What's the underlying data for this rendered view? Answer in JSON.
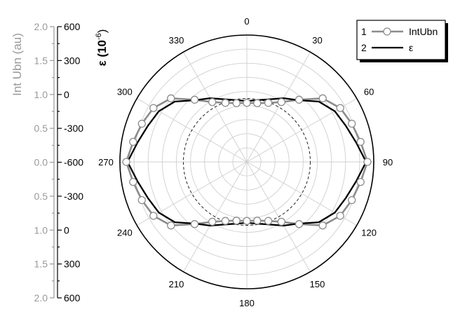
{
  "chart_data": {
    "type": "polar-line",
    "angle_unit": "degrees",
    "angle_direction": "clockwise",
    "zero_location": "top",
    "angle_ticks": [
      0,
      30,
      60,
      90,
      120,
      150,
      180,
      210,
      240,
      270,
      300,
      330
    ],
    "angle_tick_labels": [
      "0",
      "30",
      "60",
      "90",
      "120",
      "150",
      "180",
      "210",
      "240",
      "270",
      "300",
      "330"
    ],
    "radial_gridlines": 9,
    "reference_circle": {
      "style": "dashed",
      "value_au": 1.0
    },
    "left_axis": {
      "label": "Int Ubn (au)",
      "color": "#9a9a9a",
      "range_au": [
        0,
        2.0
      ],
      "tick_labels": [
        "2.0",
        "1.5",
        "1.0",
        "0.5",
        "0.0",
        "0.5",
        "1.0",
        "1.5",
        "2.0"
      ]
    },
    "right_axis": {
      "label_prefix": "ε (10",
      "label_exponent": "-6",
      "label_suffix": ")",
      "color": "#000000",
      "range": [
        -600,
        600
      ],
      "tick_labels": [
        "600",
        "300",
        "0",
        "-300",
        "-600",
        "-300",
        "0",
        "300",
        "600"
      ]
    },
    "legend": {
      "position": "top-right",
      "entries": [
        {
          "index": "1",
          "label": "IntUbn",
          "color": "#8c8c8c",
          "marker": "open-circle"
        },
        {
          "index": "2",
          "label": "ε",
          "color": "#000000",
          "marker": "none"
        }
      ]
    },
    "series": [
      {
        "name": "IntUbn",
        "angles": [
          0,
          10,
          20,
          30,
          40,
          50,
          60,
          70,
          80,
          90,
          100,
          110,
          120,
          130,
          140,
          150,
          160,
          170,
          180,
          190,
          200,
          210,
          220,
          230,
          240,
          250,
          260,
          270,
          280,
          290,
          300,
          310,
          320,
          330,
          340,
          350
        ],
        "values_au": [
          0.93,
          0.94,
          0.99,
          1.09,
          1.28,
          1.56,
          1.7,
          1.76,
          1.82,
          1.9,
          1.82,
          1.76,
          1.7,
          1.56,
          1.28,
          1.09,
          0.99,
          0.94,
          0.93,
          0.94,
          0.99,
          1.09,
          1.28,
          1.56,
          1.7,
          1.76,
          1.82,
          1.9,
          1.82,
          1.76,
          1.7,
          1.56,
          1.28,
          1.09,
          0.99,
          0.94
        ]
      },
      {
        "name": "ε",
        "angles": [
          0,
          10,
          20,
          30,
          40,
          50,
          60,
          70,
          80,
          90,
          100,
          110,
          120,
          130,
          140,
          150,
          160,
          170,
          180,
          190,
          200,
          210,
          220,
          230,
          240,
          250,
          260,
          270,
          280,
          290,
          300,
          310,
          320,
          330,
          340,
          350
        ],
        "values_au": [
          0.96,
          0.99,
          1.05,
          1.16,
          1.27,
          1.48,
          1.6,
          1.66,
          1.75,
          1.88,
          1.75,
          1.66,
          1.6,
          1.48,
          1.27,
          1.16,
          1.05,
          0.99,
          0.96,
          0.99,
          1.05,
          1.16,
          1.27,
          1.48,
          1.6,
          1.66,
          1.75,
          1.88,
          1.75,
          1.66,
          1.6,
          1.48,
          1.27,
          1.16,
          1.05,
          0.99
        ]
      }
    ]
  }
}
